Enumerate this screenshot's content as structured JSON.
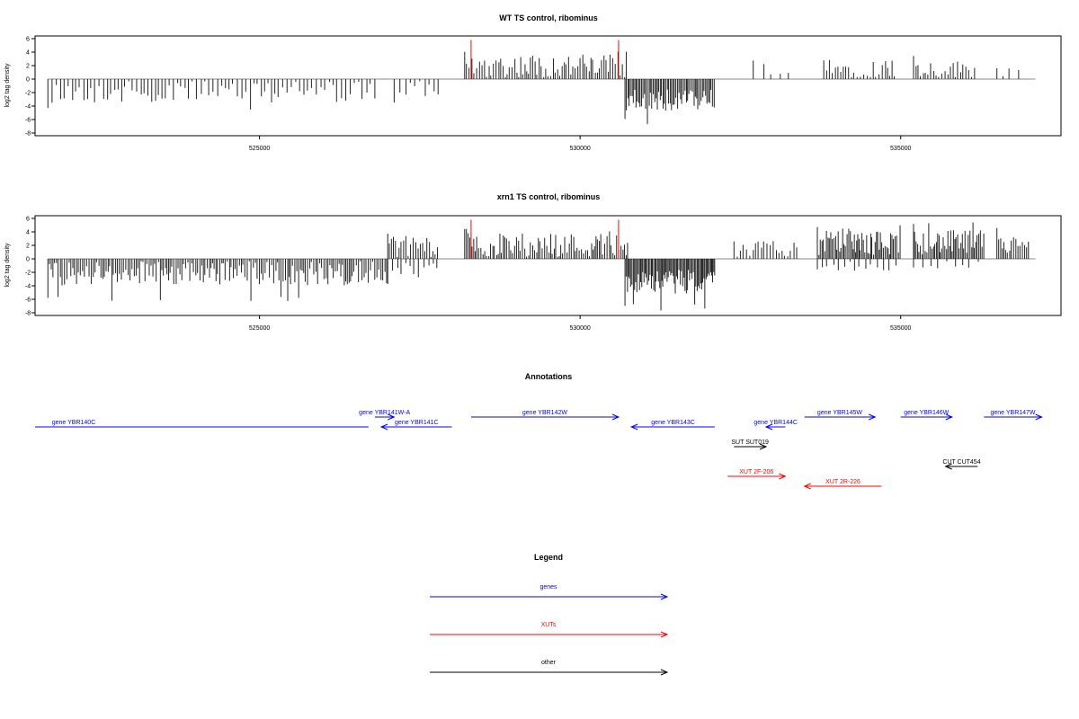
{
  "chart_data": [
    {
      "type": "bar",
      "title": "WT TS control, ribominus",
      "ylabel": "log2 tag density",
      "xlim": [
        521500,
        537500
      ],
      "ylim": [
        -8,
        6
      ],
      "xticks": [
        525000,
        530000,
        535000
      ],
      "yticks": [
        6,
        4,
        2,
        0,
        -2,
        -4,
        -6,
        -8
      ],
      "grid": false,
      "markers": [
        528300,
        530600
      ],
      "segments": [
        {
          "from": 521700,
          "to": 526800,
          "step": 60,
          "sign": -1,
          "base": 1.6,
          "amp": 1.6,
          "peak": 4.8
        },
        {
          "from": 527100,
          "to": 527800,
          "step": 80,
          "sign": -1,
          "base": 1.2,
          "amp": 1.3,
          "peak": 3.6
        },
        {
          "from": 528200,
          "to": 530750,
          "step": 35,
          "sign": 1,
          "base": 1.6,
          "amp": 1.8,
          "peak": 4.5
        },
        {
          "from": 530700,
          "to": 532100,
          "step": 22,
          "sign": -1,
          "base": 2.8,
          "amp": 1.6,
          "peak": 6.8
        },
        {
          "from": 532700,
          "to": 533300,
          "step": 150,
          "sign": 1,
          "base": 1.5,
          "amp": 1.0,
          "peak": 2.8
        },
        {
          "from": 533800,
          "to": 534900,
          "step": 45,
          "sign": 1,
          "base": 1.3,
          "amp": 1.4,
          "peak": 3.2
        },
        {
          "from": 535200,
          "to": 536200,
          "step": 40,
          "sign": 1,
          "base": 1.2,
          "amp": 1.3,
          "peak": 3.5
        },
        {
          "from": 536500,
          "to": 536900,
          "step": 120,
          "sign": 1,
          "base": 1.0,
          "amp": 0.8,
          "peak": 1.8
        }
      ]
    },
    {
      "type": "bar",
      "title": "xrn1 TS control, ribominus",
      "ylabel": "log2 tag density",
      "xlim": [
        521500,
        537500
      ],
      "ylim": [
        -8,
        6
      ],
      "xticks": [
        525000,
        530000,
        535000
      ],
      "yticks": [
        6,
        4,
        2,
        0,
        -2,
        -4,
        -6,
        -8
      ],
      "grid": false,
      "markers": [
        528300,
        530600
      ],
      "segments": [
        {
          "from": 521700,
          "to": 527000,
          "step": 30,
          "sign": -1,
          "base": 1.8,
          "amp": 1.8,
          "peak": 6.6
        },
        {
          "from": 527000,
          "to": 527800,
          "step": 35,
          "sign": 1,
          "base": 1.5,
          "amp": 1.6,
          "peak": 3.9
        },
        {
          "from": 527000,
          "to": 527800,
          "step": 70,
          "sign": -1,
          "base": 1.4,
          "amp": 1.2,
          "peak": 4.2
        },
        {
          "from": 528200,
          "to": 530750,
          "step": 30,
          "sign": 1,
          "base": 1.7,
          "amp": 1.8,
          "peak": 4.5
        },
        {
          "from": 530700,
          "to": 532100,
          "step": 18,
          "sign": -1,
          "base": 3.0,
          "amp": 1.8,
          "peak": 7.8
        },
        {
          "from": 532400,
          "to": 533400,
          "step": 45,
          "sign": 1,
          "base": 1.2,
          "amp": 1.2,
          "peak": 2.8
        },
        {
          "from": 533700,
          "to": 535000,
          "step": 22,
          "sign": 1,
          "base": 2.0,
          "amp": 1.8,
          "peak": 5.2
        },
        {
          "from": 533700,
          "to": 535000,
          "step": 90,
          "sign": -1,
          "base": 0.8,
          "amp": 0.8,
          "peak": 1.8
        },
        {
          "from": 535200,
          "to": 536300,
          "step": 22,
          "sign": 1,
          "base": 2.1,
          "amp": 1.8,
          "peak": 5.5
        },
        {
          "from": 535200,
          "to": 536300,
          "step": 120,
          "sign": -1,
          "base": 0.7,
          "amp": 0.6,
          "peak": 1.5
        },
        {
          "from": 536500,
          "to": 537000,
          "step": 30,
          "sign": 1,
          "base": 1.8,
          "amp": 1.4,
          "peak": 4.9
        }
      ]
    }
  ],
  "annotations": {
    "title": "Annotations",
    "items": [
      {
        "label": "gene YBR140C",
        "color": "#0000ff",
        "from": 521500,
        "to": 526700,
        "dir": "none",
        "row": 3
      },
      {
        "label": "gene YBR141W-A",
        "color": "#0000ff",
        "from": 526800,
        "to": 527100,
        "dir": "right",
        "row": 2
      },
      {
        "label": "gene YBR141C",
        "color": "#0000ff",
        "from": 526900,
        "to": 528000,
        "dir": "left",
        "row": 3
      },
      {
        "label": "gene YBR142W",
        "color": "#0000ff",
        "from": 528300,
        "to": 530600,
        "dir": "right",
        "row": 2
      },
      {
        "label": "gene YBR143C",
        "color": "#0000ff",
        "from": 530800,
        "to": 532100,
        "dir": "left",
        "row": 3
      },
      {
        "label": "gene YBR144C",
        "color": "#0000ff",
        "from": 532900,
        "to": 533200,
        "dir": "left",
        "row": 3
      },
      {
        "label": "gene YBR145W",
        "color": "#0000ff",
        "from": 533500,
        "to": 534600,
        "dir": "right",
        "row": 2
      },
      {
        "label": "gene YBR146W",
        "color": "#0000ff",
        "from": 535000,
        "to": 535800,
        "dir": "right",
        "row": 2
      },
      {
        "label": "gene YBR147W",
        "color": "#0000ff",
        "from": 536300,
        "to": 537200,
        "dir": "right",
        "row": 2
      },
      {
        "label": "SUT SUT019",
        "color": "#000000",
        "from": 532400,
        "to": 532900,
        "dir": "right",
        "row": 5
      },
      {
        "label": "CUT CUT454",
        "color": "#000000",
        "from": 535700,
        "to": 536200,
        "dir": "left",
        "row": 7
      },
      {
        "label": "XUT 2F-206",
        "color": "#ff0000",
        "from": 532300,
        "to": 533200,
        "dir": "right",
        "row": 8
      },
      {
        "label": "XUT 2R-226",
        "color": "#ff0000",
        "from": 533500,
        "to": 534700,
        "dir": "left",
        "row": 9
      }
    ]
  },
  "legend": {
    "title": "Legend",
    "items": [
      {
        "label": "genes",
        "color": "#0000ff"
      },
      {
        "label": "XUTs",
        "color": "#ff0000"
      },
      {
        "label": "other",
        "color": "#000000"
      }
    ]
  }
}
